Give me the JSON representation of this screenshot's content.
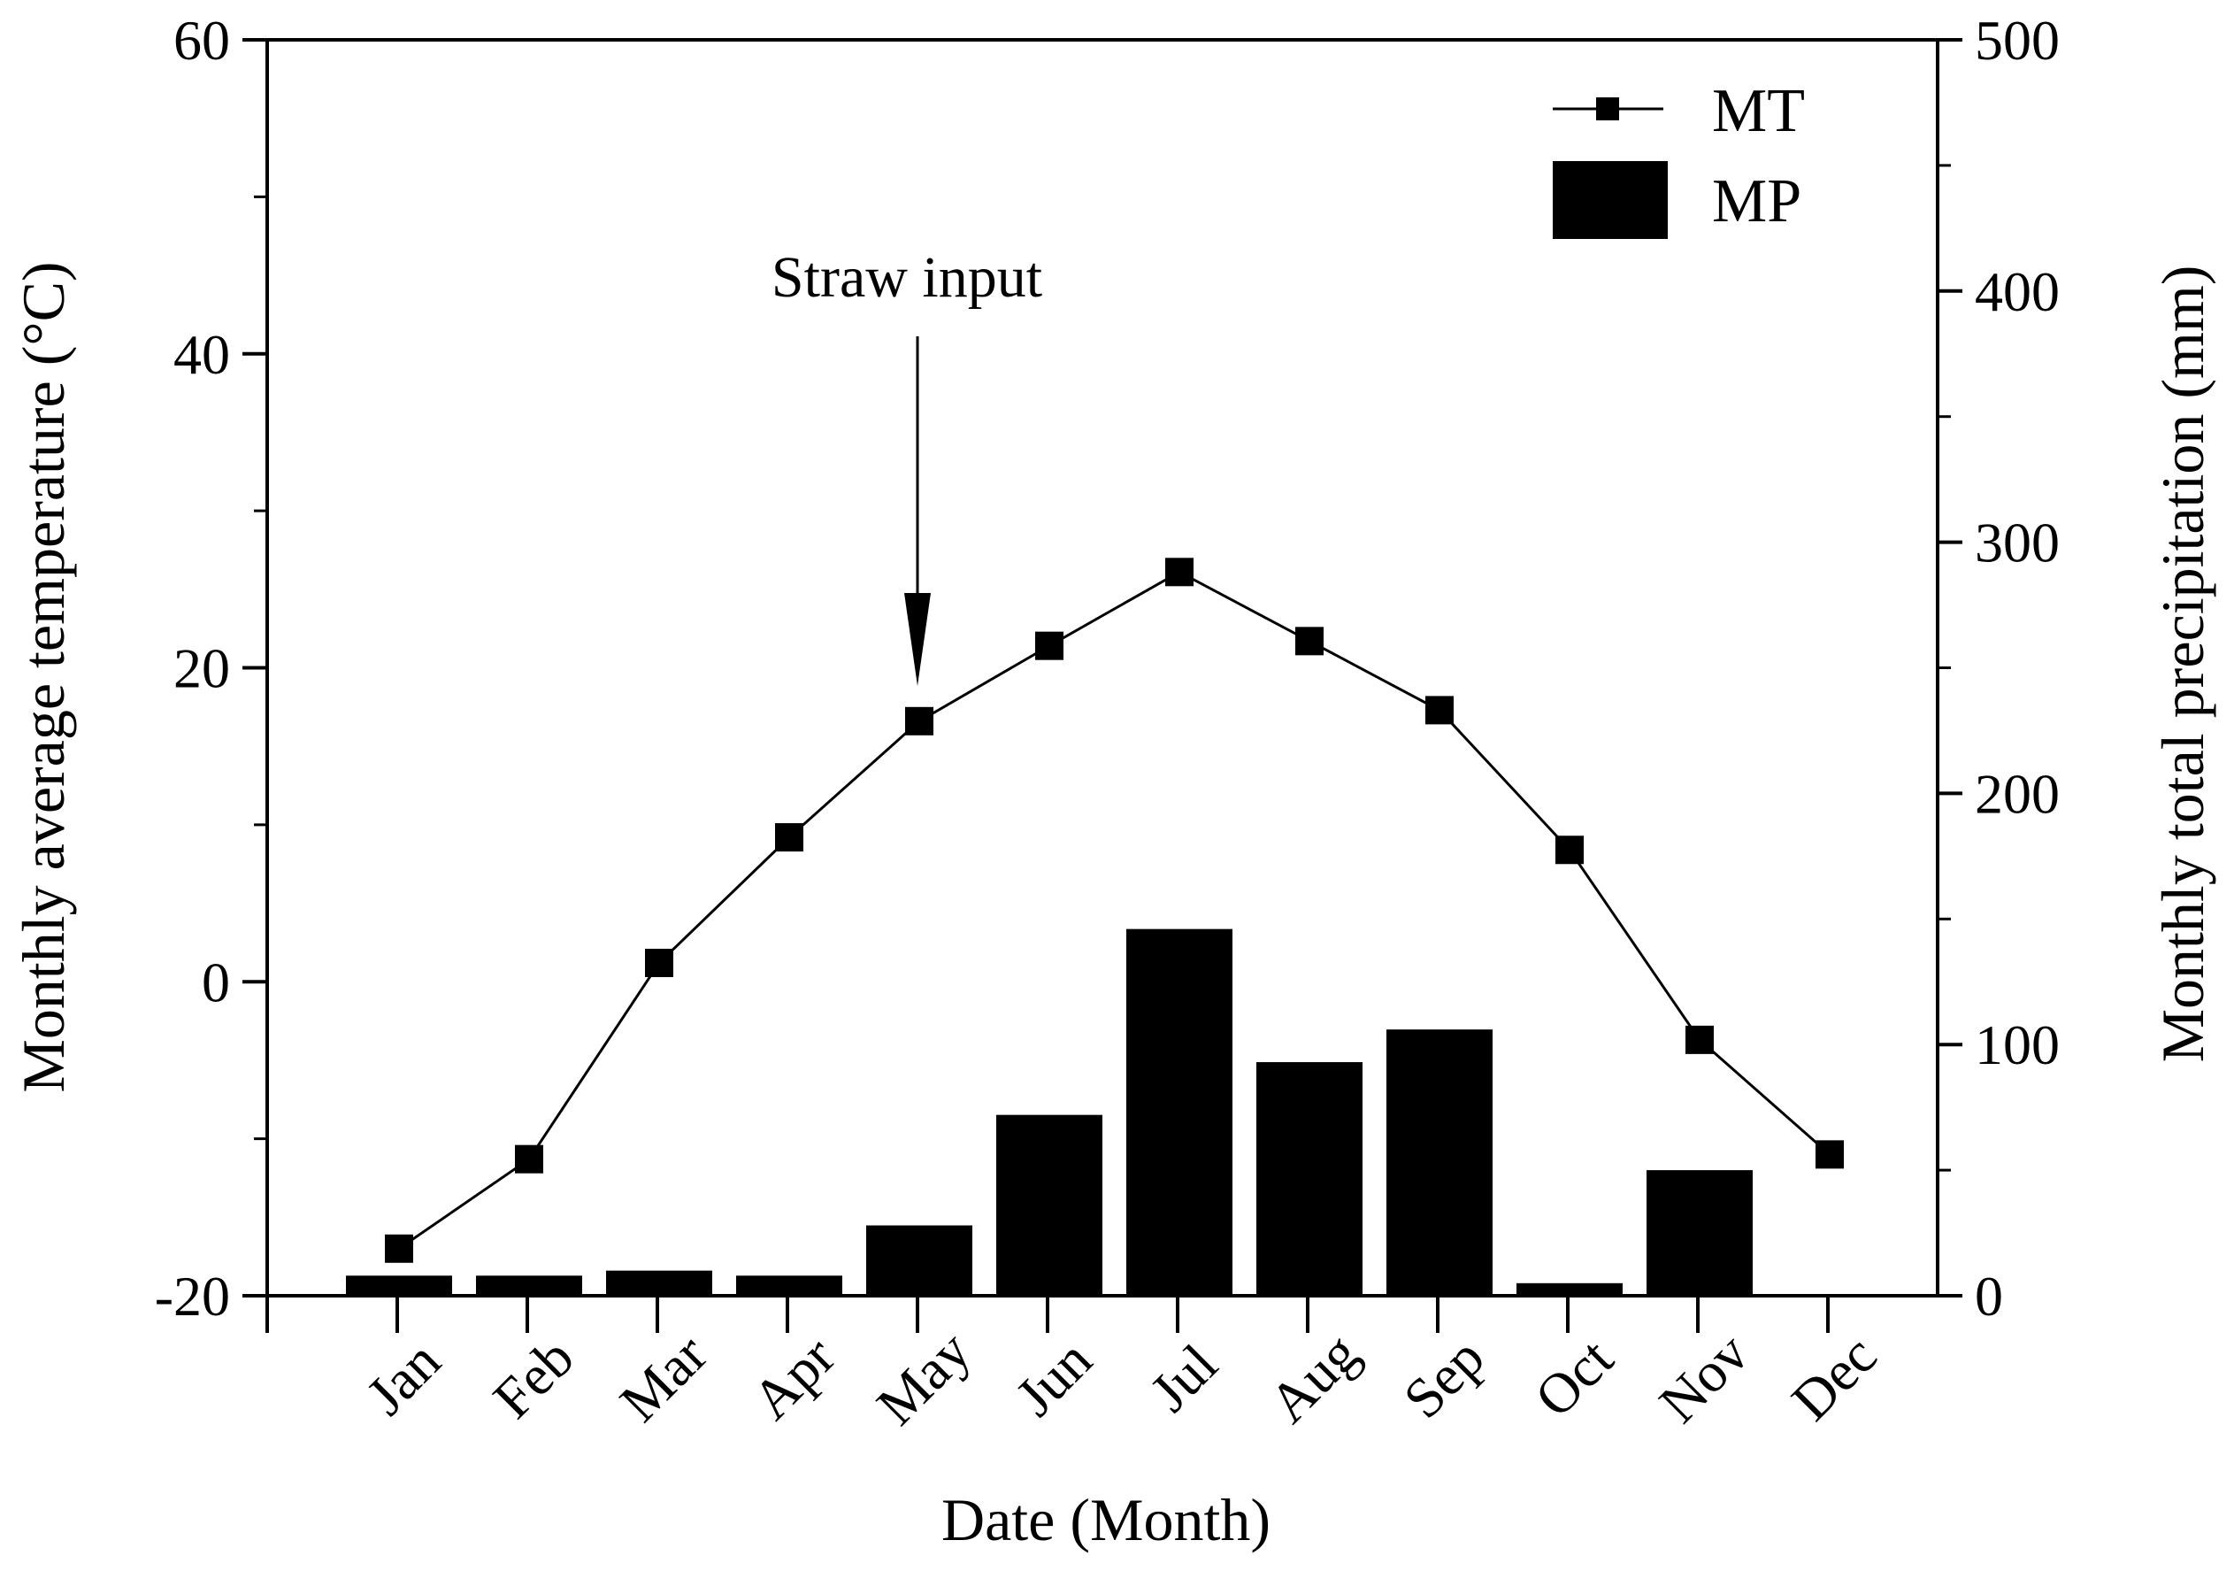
{
  "chart_data": {
    "type": "bar+line",
    "categories": [
      "Jan",
      "Feb",
      "Mar",
      "Apr",
      "May",
      "Jun",
      "Jul",
      "Aug",
      "Sep",
      "Oct",
      "Nov",
      "Dec"
    ],
    "x_label": "Date (Month)",
    "y_left": {
      "label": "Monthly average temperature (°C)",
      "range": [
        -20,
        60
      ],
      "ticks": [
        -20,
        0,
        20,
        40,
        60
      ],
      "tick_labels": [
        "-20",
        "0",
        "20",
        "40",
        "60"
      ]
    },
    "y_right": {
      "label": "Monthly total precipitation  (mm)",
      "range": [
        0,
        500
      ],
      "ticks": [
        0,
        100,
        200,
        300,
        400,
        500
      ],
      "tick_labels": [
        "0",
        "100",
        "200",
        "300",
        "400",
        "500"
      ]
    },
    "series": [
      {
        "name": "MT",
        "kind": "line",
        "axis": "left",
        "marker": "square",
        "values": [
          -17.0,
          -11.3,
          1.2,
          9.2,
          16.6,
          21.4,
          26.1,
          21.7,
          17.3,
          8.4,
          -3.7,
          -11.0
        ]
      },
      {
        "name": "MP",
        "kind": "bar",
        "axis": "right",
        "values": [
          8,
          8,
          10,
          8,
          28,
          72,
          146,
          93,
          106,
          5,
          50,
          0
        ]
      }
    ],
    "legend": {
      "position": "top-right",
      "entries": [
        "MT",
        "MP"
      ]
    },
    "annotations": [
      {
        "text": "Straw input",
        "points_to_category": "May"
      }
    ],
    "grid": false
  }
}
